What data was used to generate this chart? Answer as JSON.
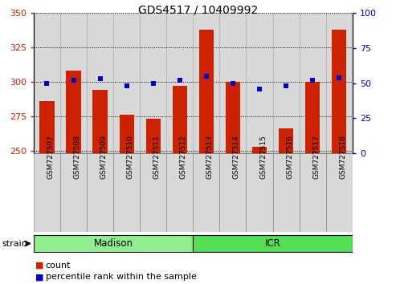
{
  "title": "GDS4517 / 10409992",
  "samples": [
    "GSM727507",
    "GSM727508",
    "GSM727509",
    "GSM727510",
    "GSM727511",
    "GSM727512",
    "GSM727513",
    "GSM727514",
    "GSM727515",
    "GSM727516",
    "GSM727517",
    "GSM727518"
  ],
  "counts": [
    286,
    308,
    294,
    276,
    273,
    297,
    338,
    300,
    253,
    266,
    300,
    338
  ],
  "percentiles": [
    50,
    52,
    53,
    48,
    50,
    52,
    55,
    50,
    46,
    48,
    52,
    54
  ],
  "strain_groups": [
    {
      "label": "Madison",
      "start": 0,
      "end": 6,
      "color": "#90EE90"
    },
    {
      "label": "ICR",
      "start": 6,
      "end": 12,
      "color": "#55DD55"
    }
  ],
  "ylim_left": [
    248,
    350
  ],
  "ylim_right": [
    0,
    100
  ],
  "yticks_left": [
    250,
    275,
    300,
    325,
    350
  ],
  "yticks_right": [
    0,
    25,
    50,
    75,
    100
  ],
  "bar_color": "#CC2200",
  "dot_color": "#0000CC",
  "bar_bottom": 248,
  "legend_count_label": "count",
  "legend_pct_label": "percentile rank within the sample",
  "strain_label": "strain",
  "fig_width": 4.93,
  "fig_height": 3.54,
  "dpi": 100
}
